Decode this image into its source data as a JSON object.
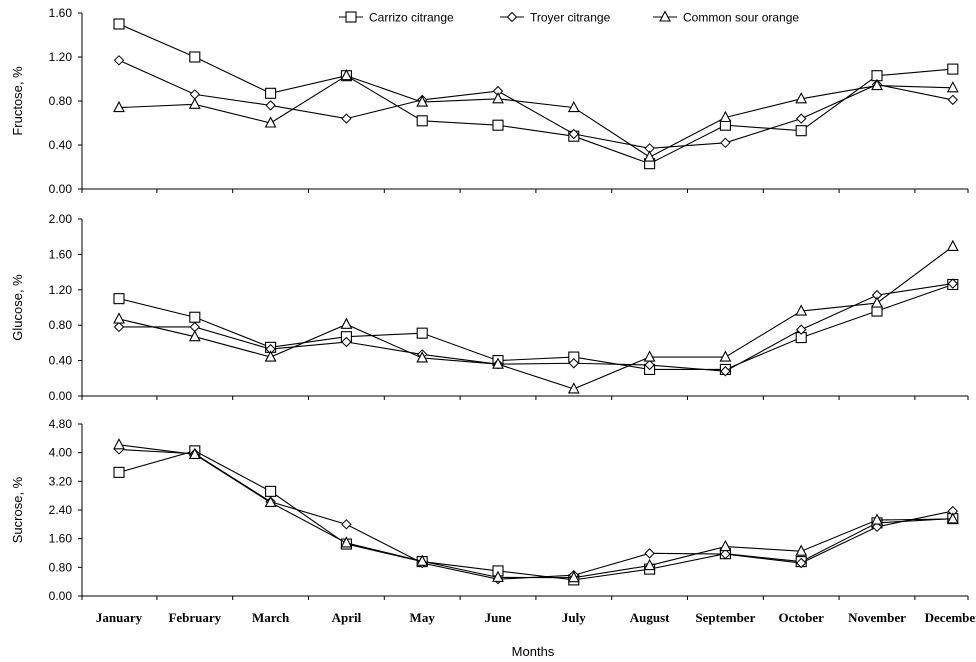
{
  "chart_data": [
    {
      "type": "line",
      "ylabel": "Fructose, %",
      "ylim": [
        0,
        1.6
      ],
      "yticks": [
        "0.00",
        "0.40",
        "0.80",
        "1.20",
        "1.60"
      ],
      "categories": [
        "January",
        "February",
        "March",
        "April",
        "May",
        "June",
        "July",
        "August",
        "September",
        "October",
        "November",
        "December"
      ],
      "legend": "top",
      "series": [
        {
          "name": "Carrizo citrange",
          "marker": "square",
          "values": [
            1.5,
            1.2,
            0.87,
            1.03,
            0.62,
            0.58,
            0.48,
            0.23,
            0.58,
            0.53,
            1.03,
            1.09
          ]
        },
        {
          "name": "Troyer citrange",
          "marker": "diamond",
          "values": [
            1.17,
            0.86,
            0.76,
            0.64,
            0.81,
            0.89,
            0.5,
            0.37,
            0.42,
            0.64,
            0.95,
            0.81
          ]
        },
        {
          "name": "Common sour orange",
          "marker": "triangle",
          "values": [
            0.74,
            0.77,
            0.6,
            1.03,
            0.79,
            0.82,
            0.74,
            0.29,
            0.65,
            0.82,
            0.94,
            0.92
          ]
        }
      ]
    },
    {
      "type": "line",
      "ylabel": "Glucose, %",
      "ylim": [
        0,
        2.0
      ],
      "yticks": [
        "0.00",
        "0.40",
        "0.80",
        "1.20",
        "1.60",
        "2.00"
      ],
      "categories": [
        "January",
        "February",
        "March",
        "April",
        "May",
        "June",
        "July",
        "August",
        "September",
        "October",
        "November",
        "December"
      ],
      "series": [
        {
          "name": "Carrizo citrange",
          "marker": "square",
          "values": [
            1.1,
            0.89,
            0.55,
            0.67,
            0.71,
            0.4,
            0.44,
            0.3,
            0.3,
            0.66,
            0.96,
            1.26
          ]
        },
        {
          "name": "Troyer citrange",
          "marker": "diamond",
          "values": [
            0.78,
            0.78,
            0.53,
            0.61,
            0.47,
            0.36,
            0.37,
            0.35,
            0.28,
            0.75,
            1.14,
            1.27
          ]
        },
        {
          "name": "Common sour orange",
          "marker": "triangle",
          "values": [
            0.87,
            0.67,
            0.44,
            0.81,
            0.43,
            0.36,
            0.08,
            0.44,
            0.44,
            0.96,
            1.05,
            1.69
          ]
        }
      ]
    },
    {
      "type": "line",
      "ylabel": "Sucrose, %",
      "ylim": [
        0,
        4.8
      ],
      "yticks": [
        "0.00",
        "0.80",
        "1.60",
        "2.40",
        "3.20",
        "4.00",
        "4.80"
      ],
      "categories": [
        "January",
        "February",
        "March",
        "April",
        "May",
        "June",
        "July",
        "August",
        "September",
        "October",
        "November",
        "December"
      ],
      "series": [
        {
          "name": "Carrizo citrange",
          "marker": "square",
          "values": [
            3.45,
            4.05,
            2.92,
            1.45,
            0.96,
            0.7,
            0.45,
            0.75,
            1.18,
            0.96,
            2.04,
            2.16
          ]
        },
        {
          "name": "Troyer citrange",
          "marker": "diamond",
          "values": [
            4.09,
            3.97,
            2.63,
            2.0,
            0.92,
            0.47,
            0.58,
            1.19,
            1.17,
            0.92,
            1.93,
            2.37
          ]
        },
        {
          "name": "Common sour orange",
          "marker": "triangle",
          "values": [
            4.22,
            3.95,
            2.61,
            1.48,
            0.97,
            0.52,
            0.51,
            0.85,
            1.38,
            1.25,
            2.12,
            2.15
          ]
        }
      ]
    }
  ],
  "xlabel": "Months"
}
